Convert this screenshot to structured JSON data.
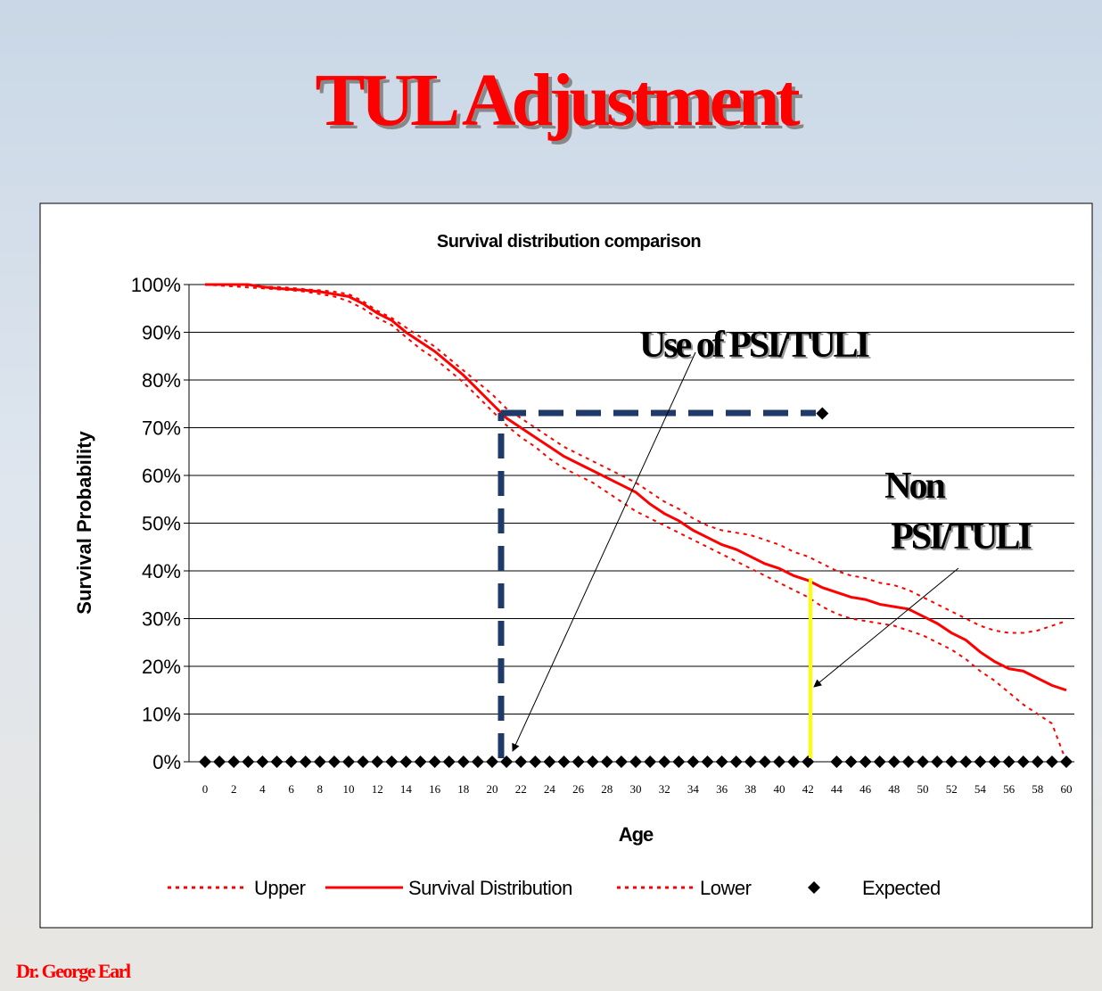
{
  "slide": {
    "title": "TUL Adjustment",
    "footer": "Dr. George Earl"
  },
  "chart_data": {
    "type": "line",
    "title": "Survival distribution comparison",
    "x_label": "Age",
    "y_label": "Survival Probability",
    "x": [
      0,
      1,
      2,
      3,
      4,
      5,
      6,
      7,
      8,
      9,
      10,
      11,
      12,
      13,
      14,
      15,
      16,
      17,
      18,
      19,
      20,
      21,
      22,
      23,
      24,
      25,
      26,
      27,
      28,
      29,
      30,
      31,
      32,
      33,
      34,
      35,
      36,
      37,
      38,
      39,
      40,
      41,
      42,
      43,
      44,
      45,
      46,
      47,
      48,
      49,
      50,
      51,
      52,
      53,
      54,
      55,
      56,
      57,
      58,
      59,
      60
    ],
    "xlim": [
      0,
      60
    ],
    "xticks": [
      0,
      2,
      4,
      6,
      8,
      10,
      12,
      14,
      16,
      18,
      20,
      22,
      24,
      26,
      28,
      30,
      32,
      34,
      36,
      38,
      40,
      42,
      44,
      46,
      48,
      50,
      52,
      54,
      56,
      58,
      60
    ],
    "ylim": [
      0,
      100
    ],
    "yticks": [
      {
        "value": 0,
        "label": "0%"
      },
      {
        "value": 10,
        "label": "10%"
      },
      {
        "value": 20,
        "label": "20%"
      },
      {
        "value": 30,
        "label": "30%"
      },
      {
        "value": 40,
        "label": "40%"
      },
      {
        "value": 50,
        "label": "50%"
      },
      {
        "value": 60,
        "label": "60%"
      },
      {
        "value": 70,
        "label": "70%"
      },
      {
        "value": 80,
        "label": "80%"
      },
      {
        "value": 90,
        "label": "90%"
      },
      {
        "value": 100,
        "label": "100%"
      }
    ],
    "grid": true,
    "legend": "bottom",
    "series": [
      {
        "name": "Upper",
        "color": "#ff0000",
        "style": "dotted",
        "values": [
          100,
          100,
          100,
          99.8,
          99.5,
          99.5,
          99.3,
          99,
          98.8,
          98.5,
          98,
          96.5,
          94.5,
          93,
          91,
          89,
          87,
          84.5,
          82,
          79.5,
          77,
          74,
          72,
          70,
          68,
          66,
          64.5,
          63,
          61.5,
          60,
          58.5,
          56.5,
          54.5,
          53,
          51,
          49.5,
          48.5,
          48,
          47.5,
          46.5,
          45.5,
          44,
          43,
          41.5,
          40,
          39,
          38.5,
          37.5,
          37,
          36,
          34.5,
          33,
          31.5,
          30,
          28.5,
          27.5,
          27,
          27,
          27.5,
          28.5,
          29.5
        ]
      },
      {
        "name": "Survival Distribution",
        "color": "#ff0000",
        "style": "solid",
        "values": [
          100,
          100,
          100,
          100,
          99.5,
          99.2,
          99,
          98.8,
          98.5,
          98,
          97.5,
          96,
          94,
          92.5,
          90,
          88,
          86,
          83.5,
          81,
          78,
          75,
          72,
          70,
          68,
          66,
          64,
          62.5,
          61,
          59.5,
          58,
          56.5,
          54,
          52,
          50.5,
          48.5,
          47,
          45.5,
          44.5,
          43,
          41.5,
          40.5,
          39,
          38,
          36.5,
          35.5,
          34.5,
          34,
          33,
          32.5,
          32,
          30.5,
          29,
          27,
          25.5,
          23,
          21,
          19.5,
          19,
          17.5,
          16,
          15
        ]
      },
      {
        "name": "Lower",
        "color": "#ff0000",
        "style": "dotted",
        "values": [
          100,
          99.8,
          99.6,
          99.4,
          99.2,
          99,
          98.8,
          98.5,
          98,
          97.5,
          96.5,
          95,
          93,
          91.5,
          89,
          86.5,
          84.5,
          82,
          79.5,
          76.5,
          73.5,
          70.5,
          68,
          66,
          63.5,
          61.5,
          60,
          58.5,
          56.5,
          54.5,
          52.5,
          51,
          49.5,
          48,
          46.5,
          45,
          43.5,
          42,
          40.5,
          39,
          37.5,
          36,
          34.5,
          32.5,
          31,
          30,
          29.5,
          29,
          28.5,
          27.5,
          26.5,
          25,
          23.5,
          21.5,
          19,
          17,
          14.5,
          12,
          10,
          8,
          0
        ]
      },
      {
        "name": "Expected",
        "color": "#000000",
        "style": "marker",
        "values": [
          0,
          0,
          0,
          0,
          0,
          0,
          0,
          0,
          0,
          0,
          0,
          0,
          0,
          0,
          0,
          0,
          0,
          0,
          0,
          0,
          0,
          0,
          0,
          0,
          0,
          0,
          0,
          0,
          0,
          0,
          0,
          0,
          0,
          0,
          0,
          0,
          0,
          0,
          0,
          0,
          0,
          0,
          0,
          73,
          0,
          0,
          0,
          0,
          0,
          0,
          0,
          0,
          0,
          0,
          0,
          0,
          0,
          0,
          0,
          0,
          0
        ]
      }
    ],
    "annotations": [
      "Use of PSI/TULI",
      "Non",
      "PSI/TULI"
    ]
  }
}
